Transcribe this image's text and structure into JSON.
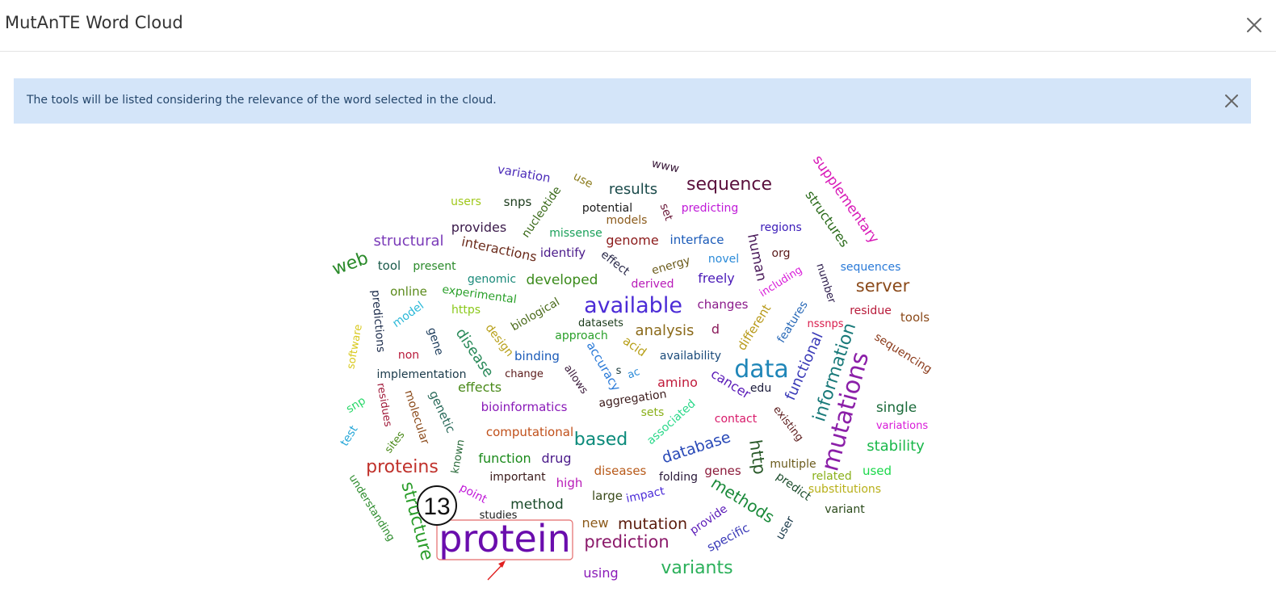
{
  "dialog": {
    "title": "MutAnTE Word Cloud",
    "close_icon": "close-icon"
  },
  "alert": {
    "text": "The tools will be listed considering the relevance of the word selected in the cloud.",
    "close_icon": "close-icon"
  },
  "annotation": {
    "badge_number": "13",
    "arrow_color": "#e02020",
    "highlight_color": "#e46b6b"
  },
  "cloud": {
    "words": [
      {
        "text": "protein",
        "color": "#6a0dad",
        "selected": true
      },
      {
        "text": "data",
        "color": "#1f86b8"
      },
      {
        "text": "mutations",
        "color": "#8b1fa8"
      },
      {
        "text": "available",
        "color": "#4b2bd6"
      },
      {
        "text": "sequence",
        "color": "#5a0f3c"
      },
      {
        "text": "proteins",
        "color": "#c0312b"
      },
      {
        "text": "structure",
        "color": "#2a9d2a"
      },
      {
        "text": "methods",
        "color": "#1a8a3a"
      },
      {
        "text": "information",
        "color": "#1a7a7a"
      },
      {
        "text": "variants",
        "color": "#2bb05a"
      },
      {
        "text": "prediction",
        "color": "#8b1a6a"
      },
      {
        "text": "based",
        "color": "#0a8a7a"
      },
      {
        "text": "server",
        "color": "#8b4a1a"
      },
      {
        "text": "web",
        "color": "#2a8a2a"
      },
      {
        "text": "mutation",
        "color": "#5a1a0a"
      },
      {
        "text": "database",
        "color": "#2a4ab8"
      },
      {
        "text": "http",
        "color": "#2a5a2a"
      },
      {
        "text": "structural",
        "color": "#7a3ab8"
      },
      {
        "text": "analysis",
        "color": "#8b6a1a"
      },
      {
        "text": "disease",
        "color": "#2a8a5a"
      },
      {
        "text": "results",
        "color": "#1a4a4a"
      },
      {
        "text": "functional",
        "color": "#3a3ab8"
      },
      {
        "text": "stability",
        "color": "#1ab84a"
      },
      {
        "text": "developed",
        "color": "#3a8a1a"
      },
      {
        "text": "human",
        "color": "#4a1a5a"
      },
      {
        "text": "supplementary",
        "color": "#d81ab8"
      },
      {
        "text": "structures",
        "color": "#2a6a1a"
      },
      {
        "text": "method",
        "color": "#1a4a2a"
      },
      {
        "text": "single",
        "color": "#1a6a3a"
      },
      {
        "text": "genome",
        "color": "#8b1a1a"
      },
      {
        "text": "interactions",
        "color": "#6a2a1a"
      },
      {
        "text": "amino",
        "color": "#c01a3a"
      },
      {
        "text": "cancer",
        "color": "#5a1ab8"
      },
      {
        "text": "function",
        "color": "#1a8a1a"
      },
      {
        "text": "drug",
        "color": "#4a1a8a"
      },
      {
        "text": "binding",
        "color": "#1a5ab8"
      },
      {
        "text": "effects",
        "color": "#4a8a1a"
      },
      {
        "text": "bioinformatics",
        "color": "#8a1ab8"
      },
      {
        "text": "computational",
        "color": "#c0501a"
      },
      {
        "text": "interface",
        "color": "#1a5ab8"
      },
      {
        "text": "sequences",
        "color": "#2a7ad8"
      },
      {
        "text": "different",
        "color": "#b89a1a"
      },
      {
        "text": "features",
        "color": "#2a6ab8"
      },
      {
        "text": "accuracy",
        "color": "#2a7ad8"
      },
      {
        "text": "genetic",
        "color": "#2a6a5a"
      },
      {
        "text": "molecular",
        "color": "#8b4a1a"
      },
      {
        "text": "new",
        "color": "#8b5a1a"
      },
      {
        "text": "provides",
        "color": "#3a1a4a"
      },
      {
        "text": "identify",
        "color": "#4a1a8a"
      },
      {
        "text": "freely",
        "color": "#4a1ab8"
      },
      {
        "text": "changes",
        "color": "#8a1a8a"
      },
      {
        "text": "availability",
        "color": "#1a4a7a"
      },
      {
        "text": "acid",
        "color": "#b8a01a"
      },
      {
        "text": "genomic",
        "color": "#1a8a7a"
      },
      {
        "text": "online",
        "color": "#5a8a1a"
      },
      {
        "text": "snps",
        "color": "#1a3a1a"
      },
      {
        "text": "tool",
        "color": "#1a5a4a"
      },
      {
        "text": "variation",
        "color": "#4a2ab8"
      },
      {
        "text": "predictions",
        "color": "#1a2a4a"
      },
      {
        "text": "gene",
        "color": "#1a3a5a"
      },
      {
        "text": "tools",
        "color": "#8b4a1a"
      },
      {
        "text": "sequencing",
        "color": "#8b3a1a"
      },
      {
        "text": "regions",
        "color": "#3a1ab8"
      },
      {
        "text": "nucleotide",
        "color": "#3a6a1a"
      },
      {
        "text": "present",
        "color": "#2a8a2a"
      },
      {
        "text": "experimental",
        "color": "#2aa02a"
      },
      {
        "text": "biological",
        "color": "#4a6a1a"
      },
      {
        "text": "design",
        "color": "#b8a01a"
      },
      {
        "text": "implementation",
        "color": "#1a3a4a"
      },
      {
        "text": "associated",
        "color": "#2ad88a"
      },
      {
        "text": "diseases",
        "color": "#b85a1a"
      },
      {
        "text": "genes",
        "color": "#8b1a3a"
      },
      {
        "text": "used",
        "color": "#1ad84a"
      },
      {
        "text": "high",
        "color": "#b81ab8"
      },
      {
        "text": "large",
        "color": "#3a4a1a"
      },
      {
        "text": "variant",
        "color": "#2a4a1a"
      },
      {
        "text": "specific",
        "color": "#3a3ab8"
      },
      {
        "text": "provide",
        "color": "#5a1ab8"
      },
      {
        "text": "predict",
        "color": "#1a4a2a"
      },
      {
        "text": "multiple",
        "color": "#6a5a1a"
      },
      {
        "text": "understanding",
        "color": "#2a8a2a"
      },
      {
        "text": "using",
        "color": "#8a1ab8"
      },
      {
        "text": "known",
        "color": "#2a6a3a"
      },
      {
        "text": "important",
        "color": "#3a1a1a"
      },
      {
        "text": "folding",
        "color": "#2a1a3a"
      },
      {
        "text": "impact",
        "color": "#4a2ad8"
      },
      {
        "text": "contact",
        "color": "#d81a6a"
      },
      {
        "text": "existing",
        "color": "#5a1a1a"
      },
      {
        "text": "residue",
        "color": "#b81a3a"
      },
      {
        "text": "nssnps",
        "color": "#d81a4a"
      },
      {
        "text": "including",
        "color": "#d81ad8"
      },
      {
        "text": "number",
        "color": "#2a1a4a"
      },
      {
        "text": "org",
        "color": "#5a1a1a"
      },
      {
        "text": "novel",
        "color": "#2a8ad8"
      },
      {
        "text": "energy",
        "color": "#6a5a1a"
      },
      {
        "text": "derived",
        "color": "#b81ab8"
      },
      {
        "text": "effect",
        "color": "#2a2a4a"
      },
      {
        "text": "missense",
        "color": "#1aa05a"
      },
      {
        "text": "potential",
        "color": "#1a1a1a"
      },
      {
        "text": "models",
        "color": "#8b5a1a"
      },
      {
        "text": "set",
        "color": "#6a1a3a"
      },
      {
        "text": "predicting",
        "color": "#c01ad8"
      },
      {
        "text": "www",
        "color": "#3a1a3a"
      },
      {
        "text": "use",
        "color": "#8a7a1a"
      },
      {
        "text": "users",
        "color": "#a0c81a"
      },
      {
        "text": "https",
        "color": "#8ac81a"
      },
      {
        "text": "model",
        "color": "#2ab8d8"
      },
      {
        "text": "software",
        "color": "#d8c81a"
      },
      {
        "text": "non",
        "color": "#b81a3a"
      },
      {
        "text": "residues",
        "color": "#a01a3a"
      },
      {
        "text": "snp",
        "color": "#2ad86a"
      },
      {
        "text": "test",
        "color": "#2aa8d8"
      },
      {
        "text": "sites",
        "color": "#4a8a1a"
      },
      {
        "text": "point",
        "color": "#c01ad8"
      },
      {
        "text": "studies",
        "color": "#1a1a1a"
      },
      {
        "text": "approach",
        "color": "#2aa02a"
      },
      {
        "text": "datasets",
        "color": "#1a3a1a"
      },
      {
        "text": "allows",
        "color": "#3a1a3a"
      },
      {
        "text": "change",
        "color": "#5a1a1a"
      },
      {
        "text": "aggregation",
        "color": "#3a1a1a"
      },
      {
        "text": "sets",
        "color": "#8ab01a"
      },
      {
        "text": "ac",
        "color": "#2a8ad8"
      },
      {
        "text": "s",
        "color": "#1a3a3a"
      },
      {
        "text": "d",
        "color": "#8a1a5a"
      },
      {
        "text": "edu",
        "color": "#1a1a3a"
      },
      {
        "text": "related",
        "color": "#8ab01a"
      },
      {
        "text": "substitutions",
        "color": "#b8b01a"
      },
      {
        "text": "variations",
        "color": "#d81ad8"
      },
      {
        "text": "user",
        "color": "#1a3a4a"
      }
    ]
  }
}
